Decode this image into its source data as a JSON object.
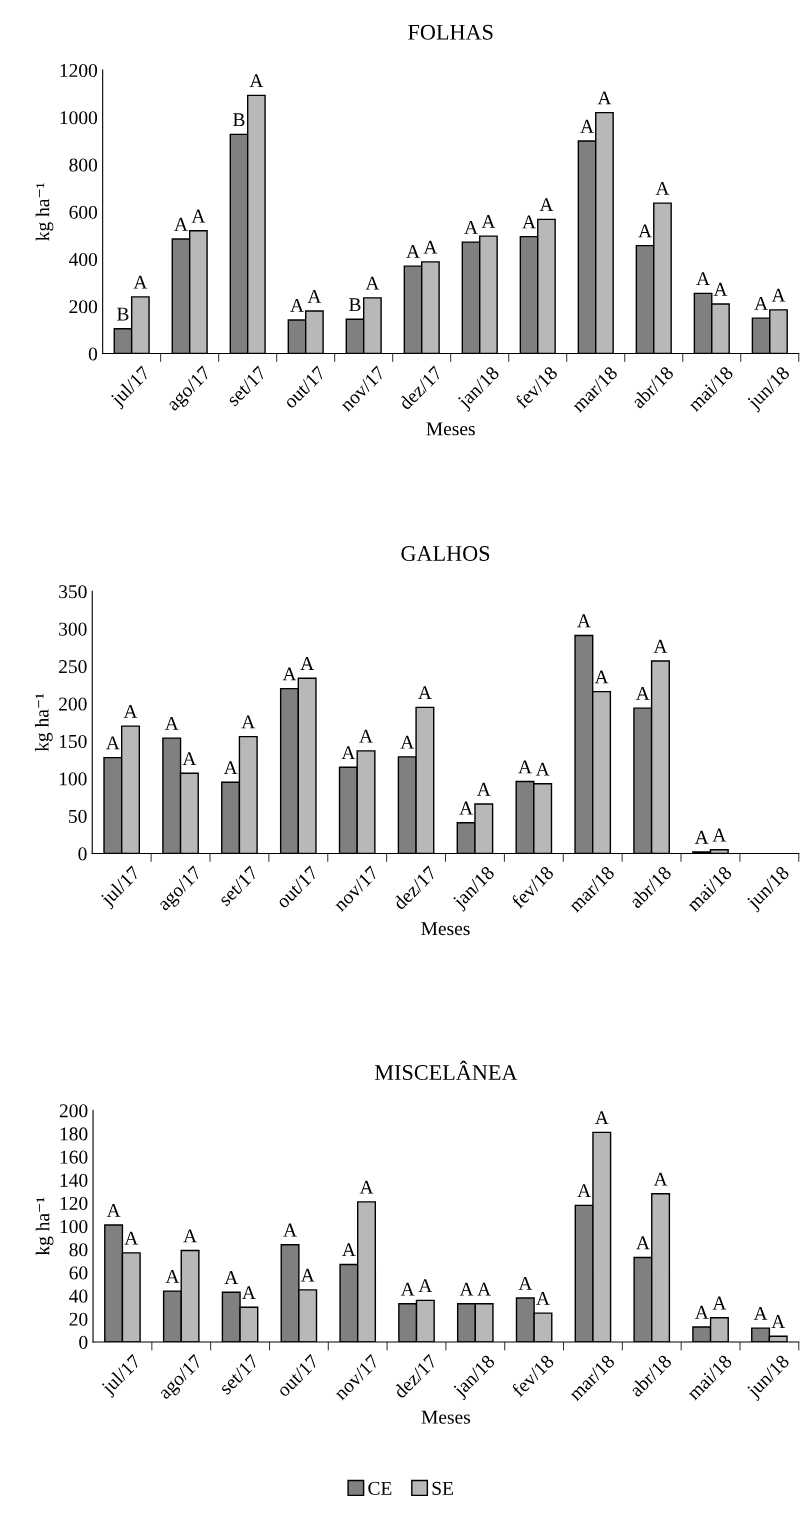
{
  "chart_data": [
    {
      "type": "bar",
      "title": "FOLHAS",
      "xlabel": "Meses",
      "ylabel": "kg ha⁻¹",
      "categories": [
        "jul/17",
        "ago/17",
        "set/17",
        "out/17",
        "nov/17",
        "dez/17",
        "jan/18",
        "fev/18",
        "mar/18",
        "abr/18",
        "mai/18",
        "jun/18"
      ],
      "series": [
        {
          "name": "CE",
          "color": "#808080",
          "values": [
            105,
            485,
            928,
            142,
            145,
            370,
            472,
            495,
            900,
            457,
            255,
            150
          ],
          "value_labels": [
            "B",
            "A",
            "B",
            "A",
            "B",
            "A",
            "A",
            "A",
            "A",
            "A",
            "A",
            "A"
          ]
        },
        {
          "name": "SE",
          "color": "#b8b8b8",
          "values": [
            240,
            520,
            1093,
            180,
            236,
            388,
            497,
            568,
            1020,
            637,
            210,
            185
          ],
          "value_labels": [
            "A",
            "A",
            "A",
            "A",
            "A",
            "A",
            "A",
            "A",
            "A",
            "A",
            "A",
            "A"
          ]
        }
      ],
      "ylim": [
        0,
        1200
      ],
      "yticks": [
        0,
        200,
        400,
        600,
        800,
        1000,
        1200
      ],
      "legend": "bottom"
    },
    {
      "type": "bar",
      "title": "GALHOS",
      "xlabel": "Meses",
      "ylabel": "kg ha⁻¹",
      "categories": [
        "jul/17",
        "ago/17",
        "set/17",
        "out/17",
        "nov/17",
        "dez/17",
        "jan/18",
        "fev/18",
        "mar/18",
        "abr/18",
        "mai/18",
        "jun/18"
      ],
      "series": [
        {
          "color": "#808080",
          "values": [
            128,
            154,
            95,
            220,
            115,
            129,
            41,
            96,
            291,
            194,
            2,
            null
          ],
          "value_labels": [
            "A",
            "A",
            "A",
            "A",
            "A",
            "A",
            "A",
            "A",
            "A",
            "A",
            "A",
            null
          ]
        },
        {
          "color": "#b8b8b8",
          "values": [
            170,
            107,
            156,
            234,
            137,
            195,
            66,
            93,
            216,
            257,
            5,
            null
          ],
          "value_labels": [
            "A",
            "A",
            "A",
            "A",
            "A",
            "A",
            "A",
            "A",
            "A",
            "A",
            "A",
            null
          ]
        }
      ],
      "ylim": [
        0,
        350
      ],
      "yticks": [
        0,
        50,
        100,
        150,
        200,
        250,
        300,
        350
      ]
    },
    {
      "type": "bar",
      "title": "MISCELÂNEA",
      "xlabel": "Meses",
      "ylabel": "kg ha⁻¹",
      "categories": [
        "jul/17",
        "ago/17",
        "set/17",
        "out/17",
        "nov/17",
        "dez/17",
        "jan/18",
        "fev/18",
        "mar/18",
        "abr/18",
        "mai/18",
        "jun/18"
      ],
      "series": [
        {
          "color": "#808080",
          "values": [
            101,
            44,
            43,
            84,
            67,
            33,
            33,
            38,
            118,
            73,
            13,
            12
          ],
          "value_labels": [
            "A",
            "A",
            "A",
            "A",
            "A",
            "A",
            "A",
            "A",
            "A",
            "A",
            "A",
            "A"
          ]
        },
        {
          "color": "#b8b8b8",
          "values": [
            77,
            79,
            30,
            45,
            121,
            36,
            33,
            25,
            181,
            128,
            21,
            5
          ],
          "value_labels": [
            "A",
            "A",
            "A",
            "A",
            "A",
            "A",
            "A",
            "A",
            "A",
            "A",
            "A",
            "A"
          ]
        }
      ],
      "ylim": [
        0,
        200
      ],
      "yticks": [
        0,
        20,
        40,
        60,
        80,
        100,
        120,
        140,
        160,
        180,
        200
      ]
    }
  ]
}
